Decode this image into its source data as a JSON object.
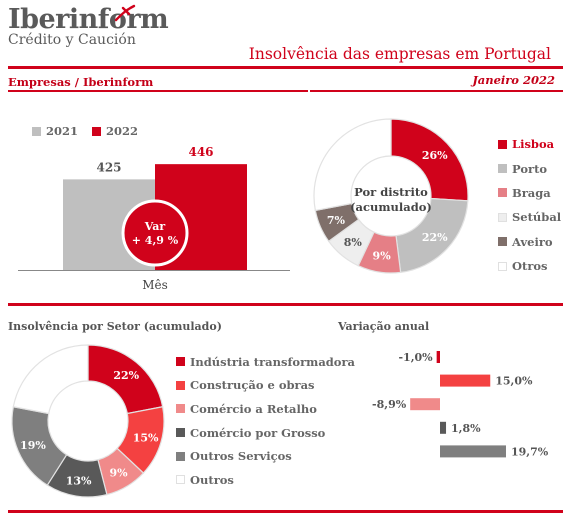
{
  "brand": {
    "name": "Iberinform",
    "tagline": "Crédito y Caución"
  },
  "header": {
    "title": "Insolvência das empresas em Portugal",
    "subject": "Empresas / Iberinform",
    "period": "Janeiro 2022"
  },
  "colors": {
    "accent": "#d0021b",
    "bar2021": "#bfbfbf",
    "bar2022": "#d0021b"
  },
  "chart_data": [
    {
      "type": "bar",
      "categories": [
        "Mês"
      ],
      "series": [
        {
          "name": "2021",
          "values": [
            425
          ],
          "color": "#bfbfbf"
        },
        {
          "name": "2022",
          "values": [
            446
          ],
          "color": "#d0021b"
        }
      ],
      "annotation": {
        "line1": "Var",
        "line2": "+ 4,9 %"
      },
      "ylim": [
        300,
        460
      ]
    },
    {
      "type": "pie",
      "donut": true,
      "center_label": [
        "Por distrito",
        "(acumulado)"
      ],
      "labels": [
        "Lisboa",
        "Porto",
        "Braga",
        "Setúbal",
        "Aveiro",
        "Otros"
      ],
      "values": [
        26,
        22,
        9,
        8,
        7,
        28
      ],
      "value_labels": [
        "26%",
        "22%",
        "9%",
        "8%",
        "7%",
        ""
      ],
      "colors": [
        "#d0021b",
        "#bfbfbf",
        "#e57f86",
        "#eeeeee",
        "#7f6f6a",
        "#ffffff"
      ],
      "label_colors": [
        "#ffffff",
        "#ffffff",
        "#ffffff",
        "#555555",
        "#ffffff",
        "#555555"
      ]
    },
    {
      "type": "pie",
      "donut": true,
      "title": "Insolvência por Setor (acumulado)",
      "labels": [
        "Indústria transformadora",
        "Construção e obras",
        "Comércio a Retalho",
        "Comércio por Grosso",
        "Outros Serviços",
        "Outros"
      ],
      "values": [
        22,
        15,
        9,
        13,
        19,
        22
      ],
      "value_labels": [
        "22%",
        "15%",
        "9%",
        "13%",
        "19%",
        ""
      ],
      "colors": [
        "#d0021b",
        "#f44141",
        "#f08a8a",
        "#595959",
        "#7f7f7f",
        "#ffffff"
      ],
      "label_colors": [
        "#ffffff",
        "#ffffff",
        "#ffffff",
        "#ffffff",
        "#ffffff",
        "#555555"
      ]
    },
    {
      "type": "bar",
      "orientation": "horizontal",
      "title": "Variação anual",
      "categories": [
        "Indústria transformadora",
        "Construção e obras",
        "Comércio a Retalho",
        "Comércio por Grosso",
        "Outros Serviços"
      ],
      "values": [
        -1.0,
        15.0,
        -8.9,
        1.8,
        19.7
      ],
      "value_labels": [
        "-1,0%",
        "15,0%",
        "-8,9%",
        "1,8%",
        "19,7%"
      ],
      "colors": [
        "#d0021b",
        "#f44141",
        "#f08a8a",
        "#595959",
        "#7f7f7f"
      ]
    }
  ]
}
